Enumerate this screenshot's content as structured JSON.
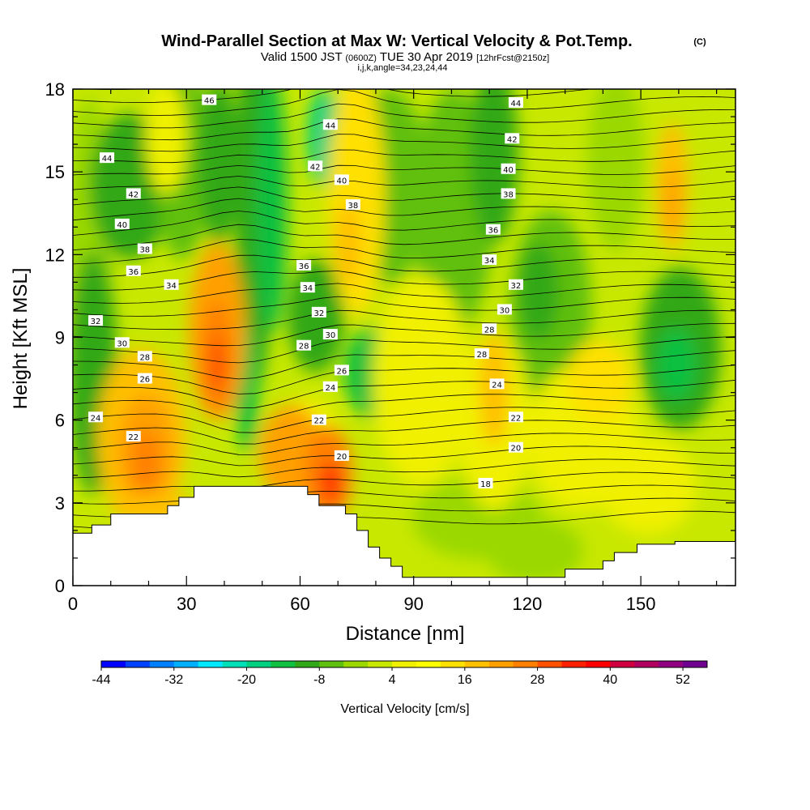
{
  "chart_data": {
    "type": "heatmap",
    "title": "Wind-Parallel Section at Max W: Vertical Velocity & Pot.Temp.",
    "title_mark": "(C)",
    "subtitle_parts": {
      "valid": "Valid 1500 JST",
      "utc": "(0600Z)",
      "date": "TUE 30 Apr 2019",
      "fcst": "[12hrFcst@2150z]"
    },
    "subtitle2": "i,j,k,angle=34,23,24,44",
    "xlabel": "Distance [nm]",
    "ylabel": "Height [Kft MSL]",
    "xlim": [
      0,
      175
    ],
    "ylim": [
      0,
      18
    ],
    "x_ticks": [
      "0",
      "30",
      "60",
      "90",
      "120",
      "150"
    ],
    "y_ticks": [
      "0",
      "3",
      "6",
      "9",
      "12",
      "15",
      "18"
    ],
    "colorbar": {
      "label": "Vertical Velocity [cm/s]",
      "tick_labels": [
        "-44",
        "-32",
        "-20",
        "-8",
        "4",
        "16",
        "28",
        "40",
        "52"
      ],
      "colors": [
        "#0000ff",
        "#0040ff",
        "#0080ff",
        "#00b0ff",
        "#00e8ff",
        "#00e0b8",
        "#00d080",
        "#10c040",
        "#30a818",
        "#60c010",
        "#9ad800",
        "#c8e800",
        "#f0f000",
        "#ffff00",
        "#ffe000",
        "#ffc000",
        "#ffa000",
        "#ff8000",
        "#ff5000",
        "#ff2000",
        "#ff0000",
        "#d00040",
        "#b00060",
        "#900080",
        "#700090"
      ]
    },
    "terrain": [
      [
        0,
        1.9
      ],
      [
        5,
        1.9
      ],
      [
        5,
        2.2
      ],
      [
        10,
        2.2
      ],
      [
        10,
        2.6
      ],
      [
        25,
        2.6
      ],
      [
        25,
        2.9
      ],
      [
        28,
        2.9
      ],
      [
        28,
        3.2
      ],
      [
        32,
        3.2
      ],
      [
        32,
        3.6
      ],
      [
        62,
        3.6
      ],
      [
        62,
        3.3
      ],
      [
        65,
        3.3
      ],
      [
        65,
        2.9
      ],
      [
        72,
        2.9
      ],
      [
        72,
        2.6
      ],
      [
        75,
        2.6
      ],
      [
        75,
        2.0
      ],
      [
        78,
        2.0
      ],
      [
        78,
        1.4
      ],
      [
        81,
        1.4
      ],
      [
        81,
        1.0
      ],
      [
        84,
        1.0
      ],
      [
        84,
        0.7
      ],
      [
        87,
        0.7
      ],
      [
        87,
        0.3
      ],
      [
        130,
        0.3
      ],
      [
        130,
        0.6
      ],
      [
        140,
        0.6
      ],
      [
        140,
        0.9
      ],
      [
        143,
        0.9
      ],
      [
        143,
        1.2
      ],
      [
        149,
        1.2
      ],
      [
        149,
        1.5
      ],
      [
        159,
        1.5
      ],
      [
        159,
        1.6
      ],
      [
        175,
        1.6
      ]
    ],
    "theta_labels": [
      {
        "x": 36,
        "y": 17.6,
        "v": "46"
      },
      {
        "x": 68,
        "y": 16.7,
        "v": "44"
      },
      {
        "x": 9,
        "y": 15.5,
        "v": "44"
      },
      {
        "x": 64,
        "y": 15.2,
        "v": "42"
      },
      {
        "x": 16,
        "y": 14.2,
        "v": "42"
      },
      {
        "x": 71,
        "y": 14.7,
        "v": "40"
      },
      {
        "x": 13,
        "y": 13.1,
        "v": "40"
      },
      {
        "x": 74,
        "y": 13.8,
        "v": "38"
      },
      {
        "x": 19,
        "y": 12.2,
        "v": "38"
      },
      {
        "x": 16,
        "y": 11.4,
        "v": "36"
      },
      {
        "x": 61,
        "y": 11.6,
        "v": "36"
      },
      {
        "x": 26,
        "y": 10.9,
        "v": "34"
      },
      {
        "x": 62,
        "y": 10.8,
        "v": "34"
      },
      {
        "x": 6,
        "y": 9.6,
        "v": "32"
      },
      {
        "x": 65,
        "y": 9.9,
        "v": "32"
      },
      {
        "x": 13,
        "y": 8.8,
        "v": "30"
      },
      {
        "x": 68,
        "y": 9.1,
        "v": "30"
      },
      {
        "x": 19,
        "y": 8.3,
        "v": "28"
      },
      {
        "x": 61,
        "y": 8.7,
        "v": "28"
      },
      {
        "x": 19,
        "y": 7.5,
        "v": "26"
      },
      {
        "x": 71,
        "y": 7.8,
        "v": "26"
      },
      {
        "x": 68,
        "y": 7.2,
        "v": "24"
      },
      {
        "x": 6,
        "y": 6.1,
        "v": "24"
      },
      {
        "x": 65,
        "y": 6.0,
        "v": "22"
      },
      {
        "x": 16,
        "y": 5.4,
        "v": "22"
      },
      {
        "x": 71,
        "y": 4.7,
        "v": "20"
      },
      {
        "x": 117,
        "y": 17.5,
        "v": "44"
      },
      {
        "x": 116,
        "y": 16.2,
        "v": "42"
      },
      {
        "x": 115,
        "y": 15.1,
        "v": "40"
      },
      {
        "x": 115,
        "y": 14.2,
        "v": "38"
      },
      {
        "x": 111,
        "y": 12.9,
        "v": "36"
      },
      {
        "x": 110,
        "y": 11.8,
        "v": "34"
      },
      {
        "x": 117,
        "y": 10.9,
        "v": "32"
      },
      {
        "x": 114,
        "y": 10.0,
        "v": "30"
      },
      {
        "x": 110,
        "y": 9.3,
        "v": "28"
      },
      {
        "x": 108,
        "y": 8.4,
        "v": "28"
      },
      {
        "x": 112,
        "y": 7.3,
        "v": "24"
      },
      {
        "x": 117,
        "y": 6.1,
        "v": "22"
      },
      {
        "x": 117,
        "y": 5.0,
        "v": "20"
      },
      {
        "x": 109,
        "y": 3.7,
        "v": "18"
      }
    ]
  }
}
